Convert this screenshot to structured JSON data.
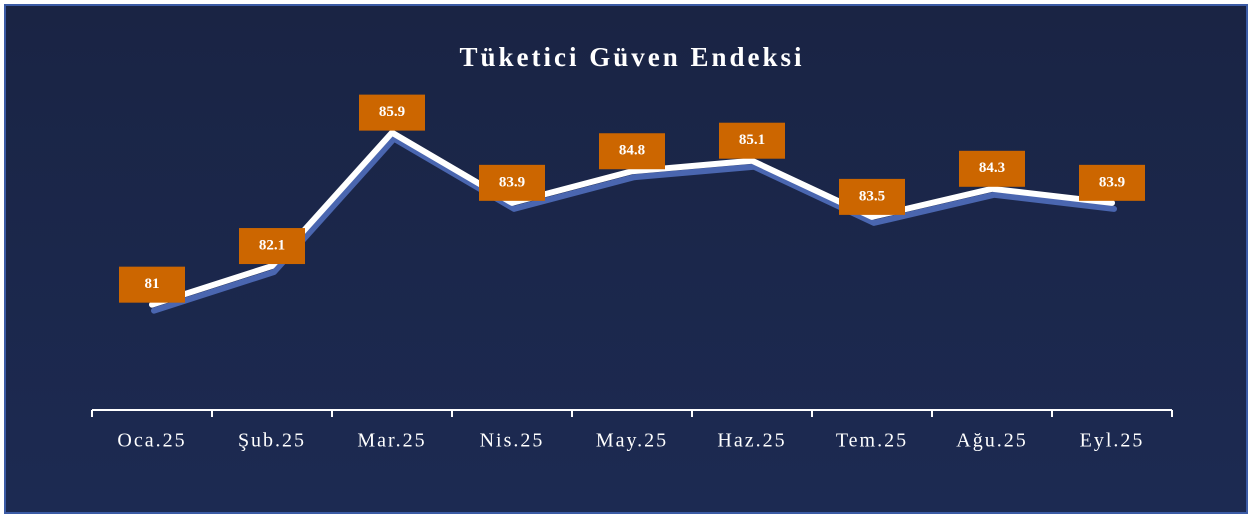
{
  "chart_data": {
    "type": "line",
    "title": "Tüketici Güven Endeksi",
    "categories": [
      "Oca.25",
      "Şub.25",
      "Mar.25",
      "Nis.25",
      "May.25",
      "Haz.25",
      "Tem.25",
      "Ağu.25",
      "Eyl.25"
    ],
    "values": [
      81,
      82.1,
      85.9,
      83.9,
      84.8,
      85.1,
      83.5,
      84.3,
      83.9
    ],
    "color": "#ffffff",
    "label_color": "#cc6600",
    "ylim": [
      78,
      87
    ]
  }
}
